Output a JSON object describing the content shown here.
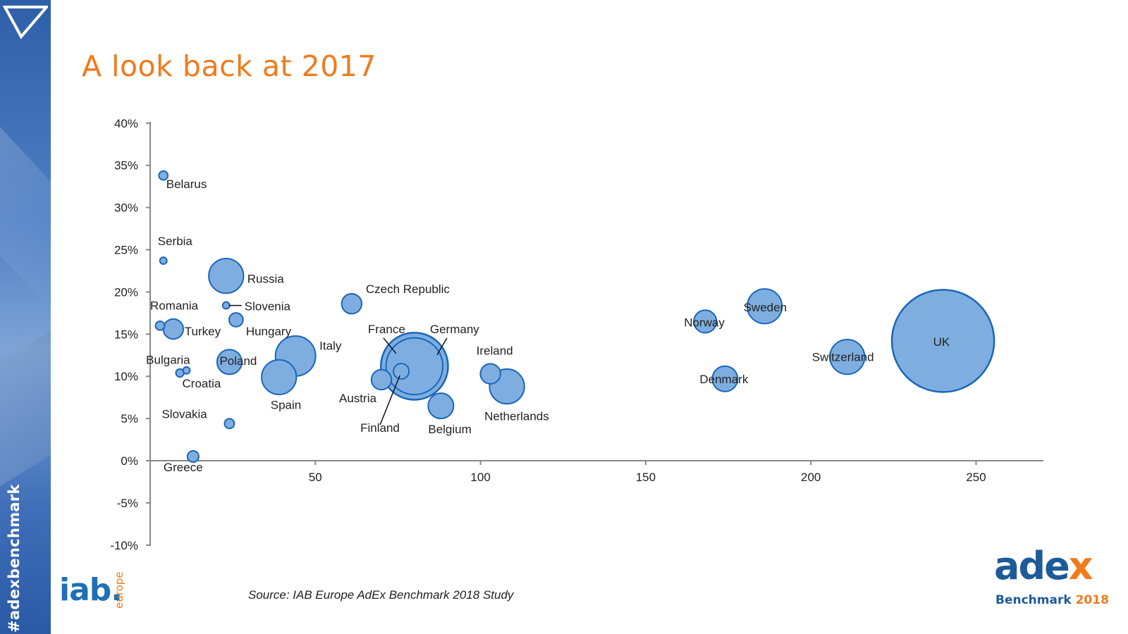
{
  "sidebar": {
    "hashtag": "#adexbenchmark",
    "color": "#3a6cb5"
  },
  "header": {
    "title": "A look back at 2017",
    "title_color": "#f07b1b"
  },
  "chart_data": {
    "type": "scatter",
    "title": "",
    "xlabel": "",
    "ylabel": "",
    "xlim": [
      0,
      270
    ],
    "ylim": [
      -10,
      40
    ],
    "x_ticks": [
      "50",
      "100",
      "150",
      "200",
      "250"
    ],
    "y_ticks": [
      "40%",
      "35%",
      "30%",
      "25%",
      "20%",
      "15%",
      "10%",
      "5%",
      "0%",
      "-5%",
      "-10%"
    ],
    "bubble_color": "#7eaee0",
    "bubble_stroke": "#1a66b8",
    "grid": false,
    "points": [
      {
        "label": "Belarus",
        "x": 4,
        "y": 33.8,
        "size": 0.5
      },
      {
        "label": "Serbia",
        "x": 4,
        "y": 23.7,
        "size": 0.3
      },
      {
        "label": "Russia",
        "x": 23,
        "y": 21.9,
        "size": 7.5
      },
      {
        "label": "Slovenia",
        "x": 23,
        "y": 18.4,
        "size": 0.3
      },
      {
        "label": "Czech Republic",
        "x": 61,
        "y": 18.6,
        "size": 2.5
      },
      {
        "label": "Romania",
        "x": 3,
        "y": 16.0,
        "size": 0.5
      },
      {
        "label": "Turkey",
        "x": 7,
        "y": 15.6,
        "size": 2.5
      },
      {
        "label": "Hungary",
        "x": 26,
        "y": 16.7,
        "size": 1.2
      },
      {
        "label": "Italy",
        "x": 44,
        "y": 12.4,
        "size": 10
      },
      {
        "label": "Bulgaria",
        "x": 9,
        "y": 10.4,
        "size": 0.4
      },
      {
        "label": "Croatia",
        "x": 11,
        "y": 10.7,
        "size": 0.3
      },
      {
        "label": "Poland",
        "x": 24,
        "y": 11.7,
        "size": 3.8
      },
      {
        "label": "Spain",
        "x": 39,
        "y": 9.9,
        "size": 7.5
      },
      {
        "label": "Slovakia",
        "x": 24,
        "y": 4.4,
        "size": 0.6
      },
      {
        "label": "Greece",
        "x": 13,
        "y": 0.5,
        "size": 0.8
      },
      {
        "label": "France",
        "x": 80,
        "y": 11.2,
        "size": 28
      },
      {
        "label": "Germany",
        "x": 80,
        "y": 11.2,
        "size": 20
      },
      {
        "label": "Austria",
        "x": 70,
        "y": 9.6,
        "size": 2.5
      },
      {
        "label": "Finland",
        "x": 76,
        "y": 10.6,
        "size": 1.5
      },
      {
        "label": "Belgium",
        "x": 88,
        "y": 6.5,
        "size": 4
      },
      {
        "label": "Ireland",
        "x": 103,
        "y": 10.3,
        "size": 2.5
      },
      {
        "label": "Netherlands",
        "x": 108,
        "y": 8.8,
        "size": 7.5
      },
      {
        "label": "Norway",
        "x": 168,
        "y": 16.5,
        "size": 3.2
      },
      {
        "label": "Sweden",
        "x": 186,
        "y": 18.3,
        "size": 7.5
      },
      {
        "label": "Denmark",
        "x": 174,
        "y": 9.7,
        "size": 4
      },
      {
        "label": "Switzerland",
        "x": 211,
        "y": 12.3,
        "size": 7.5
      },
      {
        "label": "UK",
        "x": 240,
        "y": 14.2,
        "size": 65
      }
    ]
  },
  "footer": {
    "source": "Source: IAB Europe AdEx Benchmark 2018 Study"
  },
  "logos": {
    "iab_main": "iab.",
    "iab_sub": "europe",
    "adex_ade": "ade",
    "adex_x": "x",
    "adex_bench": "Benchmark",
    "adex_year": "2018"
  }
}
